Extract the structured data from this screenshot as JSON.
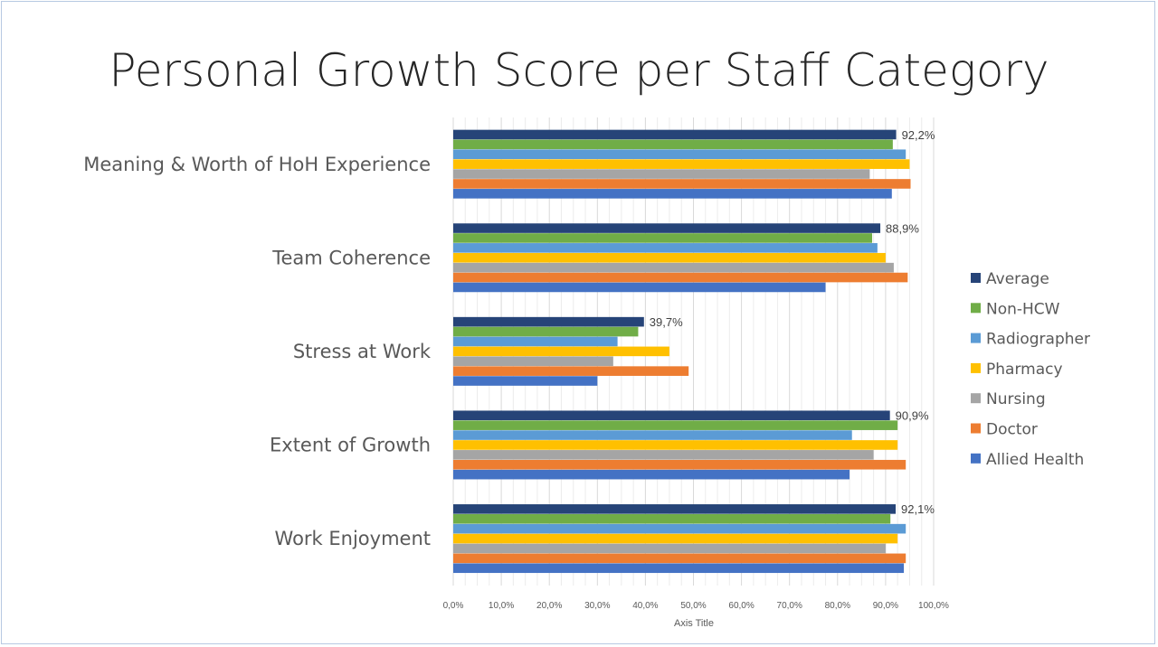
{
  "chart_data": {
    "type": "bar",
    "orientation": "horizontal",
    "title": "Personal Growth Score per Staff Category",
    "xlabel": "Axis Title",
    "xlim": [
      0,
      100
    ],
    "x_ticks": [
      "0,0%",
      "10,0%",
      "20,0%",
      "30,0%",
      "40,0%",
      "50,0%",
      "60,0%",
      "70,0%",
      "80,0%",
      "90,0%",
      "100,0%"
    ],
    "grid": true,
    "legend_position": "right",
    "categories": [
      "Meaning & Worth of HoH Experience",
      "Team Coherence",
      "Stress at Work",
      "Extent of Growth",
      "Work Enjoyment"
    ],
    "series": [
      {
        "name": "Average",
        "color": "#264478",
        "values": [
          92.2,
          88.9,
          39.7,
          90.9,
          92.1
        ],
        "labels": [
          "92,2%",
          "88,9%",
          "39,7%",
          "90,9%",
          "92,1%"
        ]
      },
      {
        "name": "Non-HCW",
        "color": "#70ad47",
        "values": [
          91.5,
          87.2,
          38.5,
          92.5,
          91.0
        ]
      },
      {
        "name": "Radiographer",
        "color": "#5b9bd5",
        "values": [
          94.2,
          88.3,
          34.2,
          83.0,
          94.2
        ]
      },
      {
        "name": "Pharmacy",
        "color": "#ffc000",
        "values": [
          95.0,
          90.0,
          45.0,
          92.5,
          92.5
        ]
      },
      {
        "name": "Nursing",
        "color": "#a5a5a5",
        "values": [
          86.7,
          91.7,
          33.3,
          87.5,
          90.0
        ]
      },
      {
        "name": "Doctor",
        "color": "#ed7d31",
        "values": [
          95.2,
          94.6,
          49.0,
          94.2,
          94.2
        ]
      },
      {
        "name": "Allied Health",
        "color": "#4472c4",
        "values": [
          91.3,
          77.5,
          30.0,
          82.5,
          93.8
        ]
      }
    ]
  }
}
